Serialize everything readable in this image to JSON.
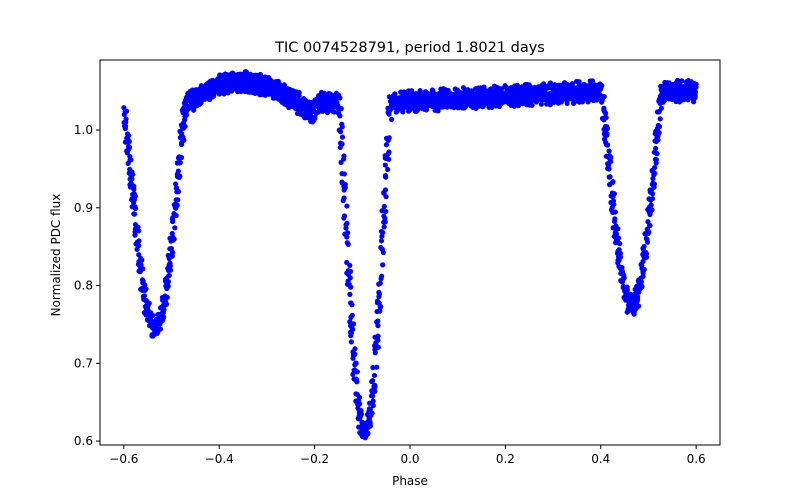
{
  "chart_data": {
    "type": "scatter",
    "title": "TIC 0074528791, period 1.8021 days",
    "xlabel": "Phase",
    "ylabel": "Normalized PDC flux",
    "xlim": [
      -0.65,
      0.65
    ],
    "ylim": [
      0.595,
      1.09
    ],
    "xticks": [
      -0.6,
      -0.4,
      -0.2,
      0.0,
      0.2,
      0.4,
      0.6
    ],
    "xtick_labels": [
      "−0.6",
      "−0.4",
      "−0.2",
      "0.0",
      "0.2",
      "0.4",
      "0.6"
    ],
    "yticks": [
      0.6,
      0.7,
      0.8,
      0.9,
      1.0
    ],
    "ytick_labels": [
      "0.6",
      "0.7",
      "0.8",
      "0.9",
      "1.0"
    ],
    "grid": false,
    "legend": "none",
    "series": [
      {
        "color": "#0000ff",
        "x_range": [
          -0.6,
          0.6
        ],
        "primary_eclipse": {
          "center": -0.095,
          "min_flux": 0.615,
          "half_width": 0.055
        },
        "secondary_eclipse": {
          "centers": [
            -0.535,
            0.465
          ],
          "min_flux": 0.76,
          "half_width": 0.065
        },
        "baseline": {
          "left_arc": [
            1.02,
            1.07
          ],
          "right_plateau": [
            1.02,
            1.06
          ]
        }
      }
    ]
  }
}
